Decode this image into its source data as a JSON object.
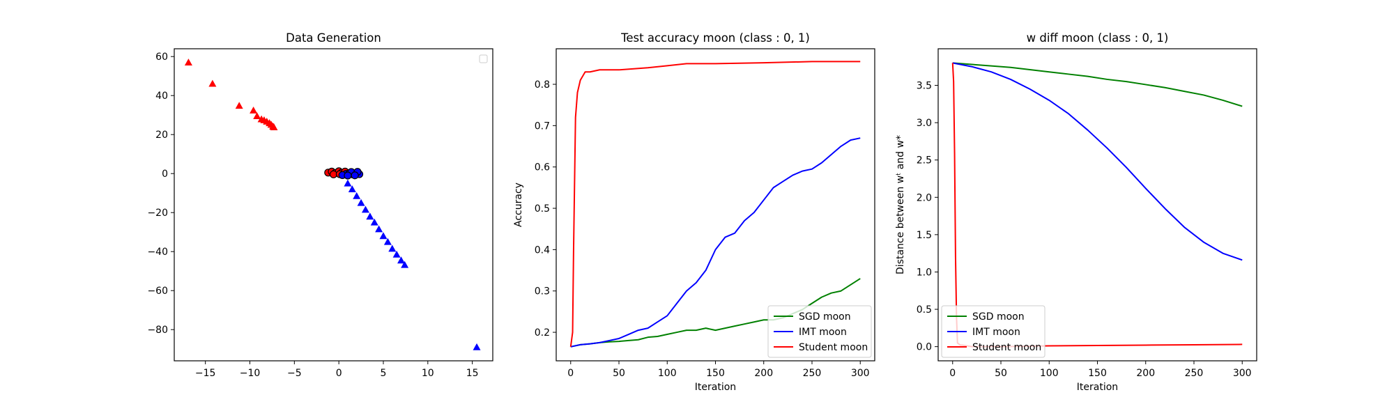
{
  "chart_data": [
    {
      "type": "scatter",
      "title": "Data Generation",
      "xlabel": "",
      "ylabel": "",
      "xlim": [
        -18.5,
        17.3
      ],
      "ylim": [
        -96,
        64
      ],
      "xticks": [
        -15,
        -10,
        -5,
        0,
        5,
        10,
        15
      ],
      "yticks": [
        -80,
        -60,
        -40,
        -20,
        0,
        20,
        40,
        60
      ],
      "grid": false,
      "legend": {
        "placement": "top-right",
        "entries": []
      },
      "series": [
        {
          "color": "#ff0000",
          "marker": "triangle",
          "points": [
            [
              -16.9,
              57.0
            ],
            [
              -14.2,
              46.1
            ],
            [
              -11.2,
              34.8
            ],
            [
              -9.6,
              32.4
            ],
            [
              -9.2,
              29.5
            ],
            [
              -8.7,
              27.9
            ],
            [
              -8.4,
              27.4
            ],
            [
              -8.1,
              26.7
            ],
            [
              -7.8,
              25.9
            ],
            [
              -7.6,
              25.1
            ],
            [
              -7.4,
              24.2
            ],
            [
              -7.3,
              23.8
            ]
          ]
        },
        {
          "color": "#0000ff",
          "marker": "triangle",
          "points": [
            [
              1.0,
              -5.0
            ],
            [
              1.5,
              -8.0
            ],
            [
              2.0,
              -11.5
            ],
            [
              2.5,
              -15.0
            ],
            [
              3.0,
              -18.5
            ],
            [
              3.5,
              -22.0
            ],
            [
              4.0,
              -25.0
            ],
            [
              4.5,
              -28.5
            ],
            [
              5.0,
              -32.0
            ],
            [
              5.5,
              -35.0
            ],
            [
              6.0,
              -38.5
            ],
            [
              6.5,
              -41.5
            ],
            [
              7.0,
              -44.5
            ],
            [
              7.4,
              -46.8
            ],
            [
              15.5,
              -89.0
            ]
          ]
        },
        {
          "color": "#ff0000",
          "marker": "circle",
          "edgecolor": "#000000",
          "points": [
            [
              -1.2,
              0.5
            ],
            [
              -0.8,
              1.0
            ],
            [
              -0.4,
              0.3
            ],
            [
              0.0,
              1.2
            ],
            [
              0.3,
              0.4
            ],
            [
              0.7,
              1.0
            ],
            [
              -0.6,
              -0.4
            ],
            [
              0.1,
              -0.3
            ],
            [
              0.9,
              -0.6
            ],
            [
              1.2,
              0.2
            ]
          ]
        },
        {
          "color": "#0000ff",
          "marker": "circle",
          "edgecolor": "#000000",
          "points": [
            [
              0.8,
              -0.2
            ],
            [
              1.2,
              0.3
            ],
            [
              1.6,
              -0.5
            ],
            [
              2.0,
              0.2
            ],
            [
              2.3,
              -0.3
            ],
            [
              1.4,
              0.8
            ],
            [
              2.1,
              0.9
            ],
            [
              0.4,
              -0.8
            ],
            [
              1.0,
              -1.0
            ],
            [
              1.8,
              -0.9
            ]
          ]
        }
      ]
    },
    {
      "type": "line",
      "title": "Test accuracy moon (class : 0, 1)",
      "xlabel": "Iteration",
      "ylabel": "Accuracy",
      "xlim": [
        -15,
        315
      ],
      "ylim": [
        0.131,
        0.886
      ],
      "xticks": [
        0,
        50,
        100,
        150,
        200,
        250,
        300
      ],
      "yticks": [
        0.2,
        0.3,
        0.4,
        0.5,
        0.6,
        0.7,
        0.8
      ],
      "grid": false,
      "legend": {
        "placement": "lower-right"
      },
      "series": [
        {
          "name": "SGD moon",
          "color": "#008000",
          "x": [
            0,
            10,
            20,
            30,
            40,
            50,
            60,
            70,
            80,
            90,
            100,
            110,
            120,
            130,
            140,
            150,
            160,
            170,
            180,
            190,
            200,
            210,
            220,
            230,
            240,
            250,
            260,
            270,
            280,
            290,
            300
          ],
          "y": [
            0.165,
            0.17,
            0.172,
            0.175,
            0.177,
            0.178,
            0.18,
            0.182,
            0.188,
            0.19,
            0.195,
            0.2,
            0.205,
            0.205,
            0.21,
            0.205,
            0.21,
            0.215,
            0.22,
            0.225,
            0.23,
            0.23,
            0.235,
            0.245,
            0.255,
            0.27,
            0.285,
            0.295,
            0.3,
            0.315,
            0.33
          ]
        },
        {
          "name": "IMT moon",
          "color": "#0000ff",
          "x": [
            0,
            10,
            20,
            30,
            40,
            50,
            60,
            70,
            80,
            90,
            100,
            110,
            120,
            130,
            140,
            150,
            160,
            170,
            180,
            190,
            200,
            210,
            220,
            230,
            240,
            250,
            260,
            270,
            280,
            290,
            300
          ],
          "y": [
            0.165,
            0.17,
            0.172,
            0.175,
            0.18,
            0.185,
            0.195,
            0.205,
            0.21,
            0.225,
            0.24,
            0.27,
            0.3,
            0.32,
            0.35,
            0.4,
            0.43,
            0.44,
            0.47,
            0.49,
            0.52,
            0.55,
            0.565,
            0.58,
            0.59,
            0.595,
            0.61,
            0.63,
            0.65,
            0.665,
            0.67
          ]
        },
        {
          "name": "Student moon",
          "color": "#ff0000",
          "x": [
            0,
            2,
            3,
            5,
            7,
            10,
            15,
            20,
            30,
            50,
            80,
            100,
            120,
            150,
            200,
            250,
            300
          ],
          "y": [
            0.165,
            0.2,
            0.4,
            0.72,
            0.78,
            0.81,
            0.83,
            0.83,
            0.835,
            0.835,
            0.84,
            0.845,
            0.85,
            0.85,
            0.852,
            0.855,
            0.855
          ]
        }
      ]
    },
    {
      "type": "line",
      "title": "w diff moon (class : 0, 1)",
      "xlabel": "Iteration",
      "ylabel": "Distance between wᵗ and w*",
      "xlim": [
        -15,
        315
      ],
      "ylim": [
        -0.19,
        3.99
      ],
      "xticks": [
        0,
        50,
        100,
        150,
        200,
        250,
        300
      ],
      "yticks": [
        0.0,
        0.5,
        1.0,
        1.5,
        2.0,
        2.5,
        3.0,
        3.5
      ],
      "grid": false,
      "legend": {
        "placement": "lower-left"
      },
      "series": [
        {
          "name": "SGD moon",
          "color": "#008000",
          "x": [
            0,
            20,
            40,
            60,
            80,
            100,
            120,
            140,
            160,
            180,
            200,
            220,
            240,
            260,
            280,
            300
          ],
          "y": [
            3.8,
            3.78,
            3.76,
            3.74,
            3.71,
            3.68,
            3.65,
            3.62,
            3.58,
            3.55,
            3.51,
            3.47,
            3.42,
            3.37,
            3.3,
            3.22
          ]
        },
        {
          "name": "IMT moon",
          "color": "#0000ff",
          "x": [
            0,
            20,
            40,
            60,
            80,
            100,
            120,
            140,
            160,
            180,
            200,
            220,
            240,
            260,
            280,
            300
          ],
          "y": [
            3.8,
            3.75,
            3.68,
            3.58,
            3.45,
            3.3,
            3.12,
            2.9,
            2.66,
            2.4,
            2.12,
            1.85,
            1.6,
            1.4,
            1.25,
            1.16
          ]
        },
        {
          "name": "Student moon",
          "color": "#ff0000",
          "x": [
            0,
            1,
            2,
            3,
            4,
            5,
            8,
            10,
            20,
            50,
            100,
            150,
            200,
            250,
            300
          ],
          "y": [
            3.8,
            3.55,
            2.6,
            1.2,
            0.4,
            0.05,
            0.02,
            0.02,
            0.0,
            0.0,
            0.01,
            0.015,
            0.02,
            0.025,
            0.03
          ]
        }
      ]
    }
  ]
}
